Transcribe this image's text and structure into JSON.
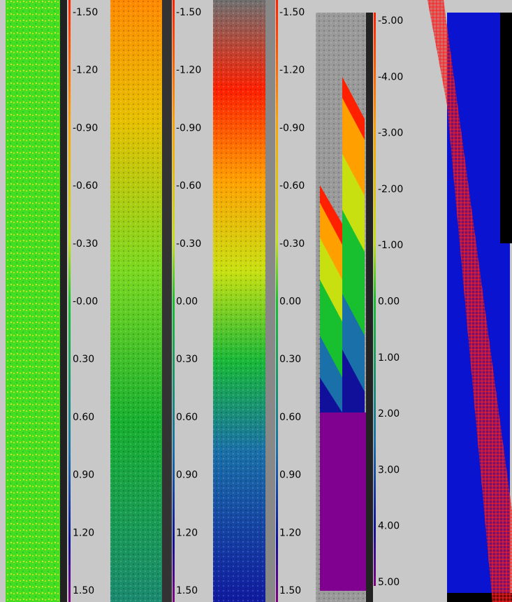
{
  "panels": [
    {
      "ticks": [
        "-1.50",
        "-1.20",
        "-0.90",
        "-0.60",
        "-0.30",
        "-0.00",
        "0.30",
        "0.60",
        "0.90",
        "1.20",
        "1.50"
      ]
    },
    {
      "ticks": [
        "-1.50",
        "-1.20",
        "-0.90",
        "-0.60",
        "-0.30",
        "0.00",
        "0.30",
        "0.60",
        "0.90",
        "1.20",
        "1.50"
      ]
    },
    {
      "ticks": [
        "-1.50",
        "-1.20",
        "-0.90",
        "-0.60",
        "-0.30",
        "0.00",
        "0.30",
        "0.60",
        "0.90",
        "1.20",
        "1.50"
      ]
    },
    {
      "ticks": [
        "-5.00",
        "-4.00",
        "-3.00",
        "-2.00",
        "-1.00",
        "0.00",
        "1.00",
        "2.00",
        "3.00",
        "4.00",
        "5.00"
      ]
    }
  ]
}
